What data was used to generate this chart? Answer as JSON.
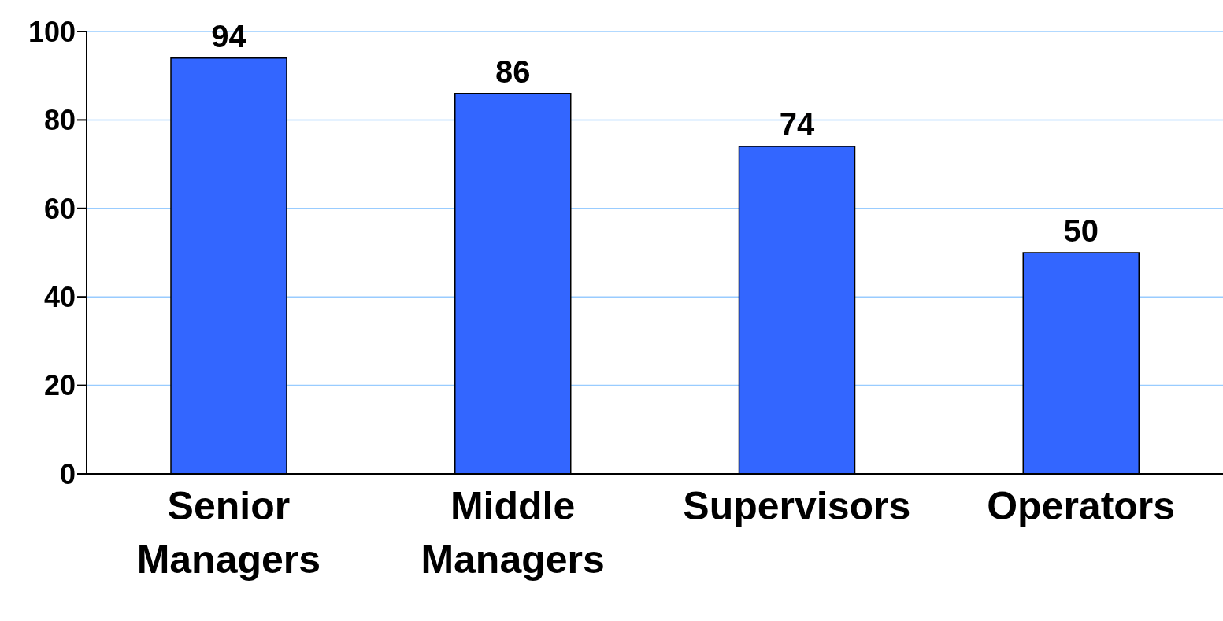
{
  "chart_data": {
    "type": "bar",
    "categories": [
      "Senior Managers",
      "Middle Managers",
      "Supervisors",
      "Operators"
    ],
    "values": [
      94,
      86,
      74,
      50
    ],
    "color": "#3366ff",
    "ylim": [
      0,
      100
    ],
    "yticks": [
      0,
      20,
      40,
      60,
      80,
      100
    ],
    "grid": "y",
    "data_labels": true
  }
}
